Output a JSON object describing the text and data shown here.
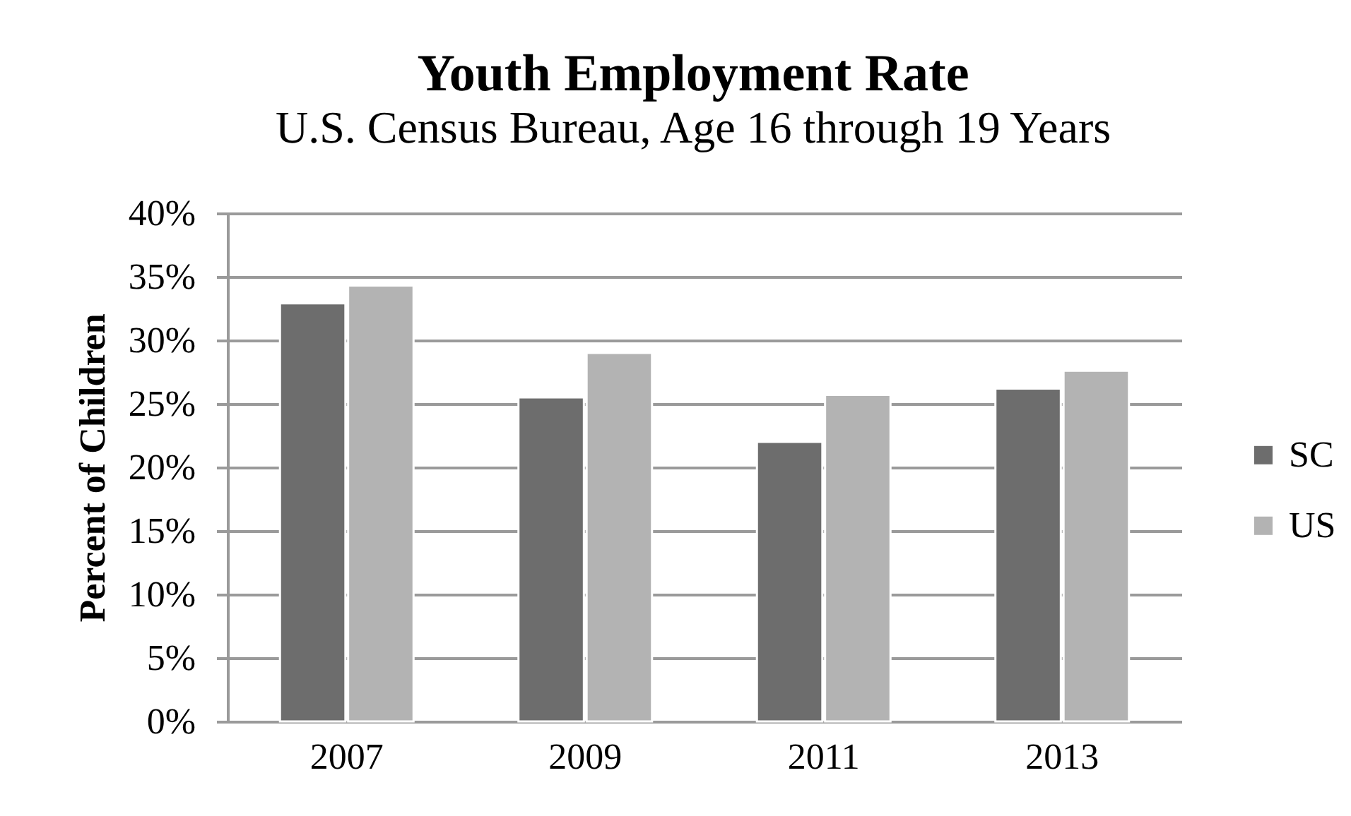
{
  "chart_data": {
    "type": "bar",
    "title": "Youth Employment Rate",
    "subtitle": "U.S. Census Bureau, Age 16 through 19 Years",
    "ylabel": "Percent of Children",
    "categories": [
      "2007",
      "2009",
      "2011",
      "2013"
    ],
    "series": [
      {
        "name": "SC",
        "color": "#6d6d6d",
        "values": [
          32.9,
          25.5,
          22.0,
          26.2
        ]
      },
      {
        "name": "US",
        "color": "#b3b3b3",
        "values": [
          34.3,
          29.0,
          25.7,
          27.6
        ]
      }
    ],
    "ylim": [
      0,
      40
    ],
    "yticks": [
      {
        "value": 0,
        "label": "0%"
      },
      {
        "value": 5,
        "label": "5%"
      },
      {
        "value": 10,
        "label": "10%"
      },
      {
        "value": 15,
        "label": "15%"
      },
      {
        "value": 20,
        "label": "20%"
      },
      {
        "value": 25,
        "label": "25%"
      },
      {
        "value": 30,
        "label": "30%"
      },
      {
        "value": 35,
        "label": "35%"
      },
      {
        "value": 40,
        "label": "40%"
      }
    ],
    "grid": "y",
    "legend": "right"
  }
}
